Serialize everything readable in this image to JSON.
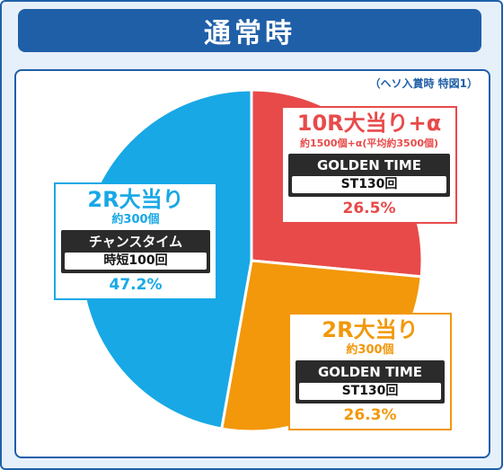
{
  "page_title": "通常時",
  "note": "（ヘソ入賞時 特図1）",
  "colors": {
    "red": "#e84a4a",
    "orange": "#f2980a",
    "blue": "#18a8e6",
    "navy": "#1f5fa8"
  },
  "chart_data": {
    "type": "pie",
    "title": "通常時",
    "slices": [
      {
        "label": "10R大当り+α",
        "sub": "約1500個+α(平均約3500個)",
        "mode": "GOLDEN TIME",
        "mode_detail": "ST130回",
        "value": 26.5,
        "pct_label": "26.5%",
        "color": "#e84a4a"
      },
      {
        "label": "2R大当り",
        "sub": "約300個",
        "mode": "GOLDEN TIME",
        "mode_detail": "ST130回",
        "value": 26.3,
        "pct_label": "26.3%",
        "color": "#f2980a"
      },
      {
        "label": "2R大当り",
        "sub": "約300個",
        "mode": "チャンスタイム",
        "mode_detail": "時短100回",
        "value": 47.2,
        "pct_label": "47.2%",
        "color": "#18a8e6"
      }
    ]
  }
}
